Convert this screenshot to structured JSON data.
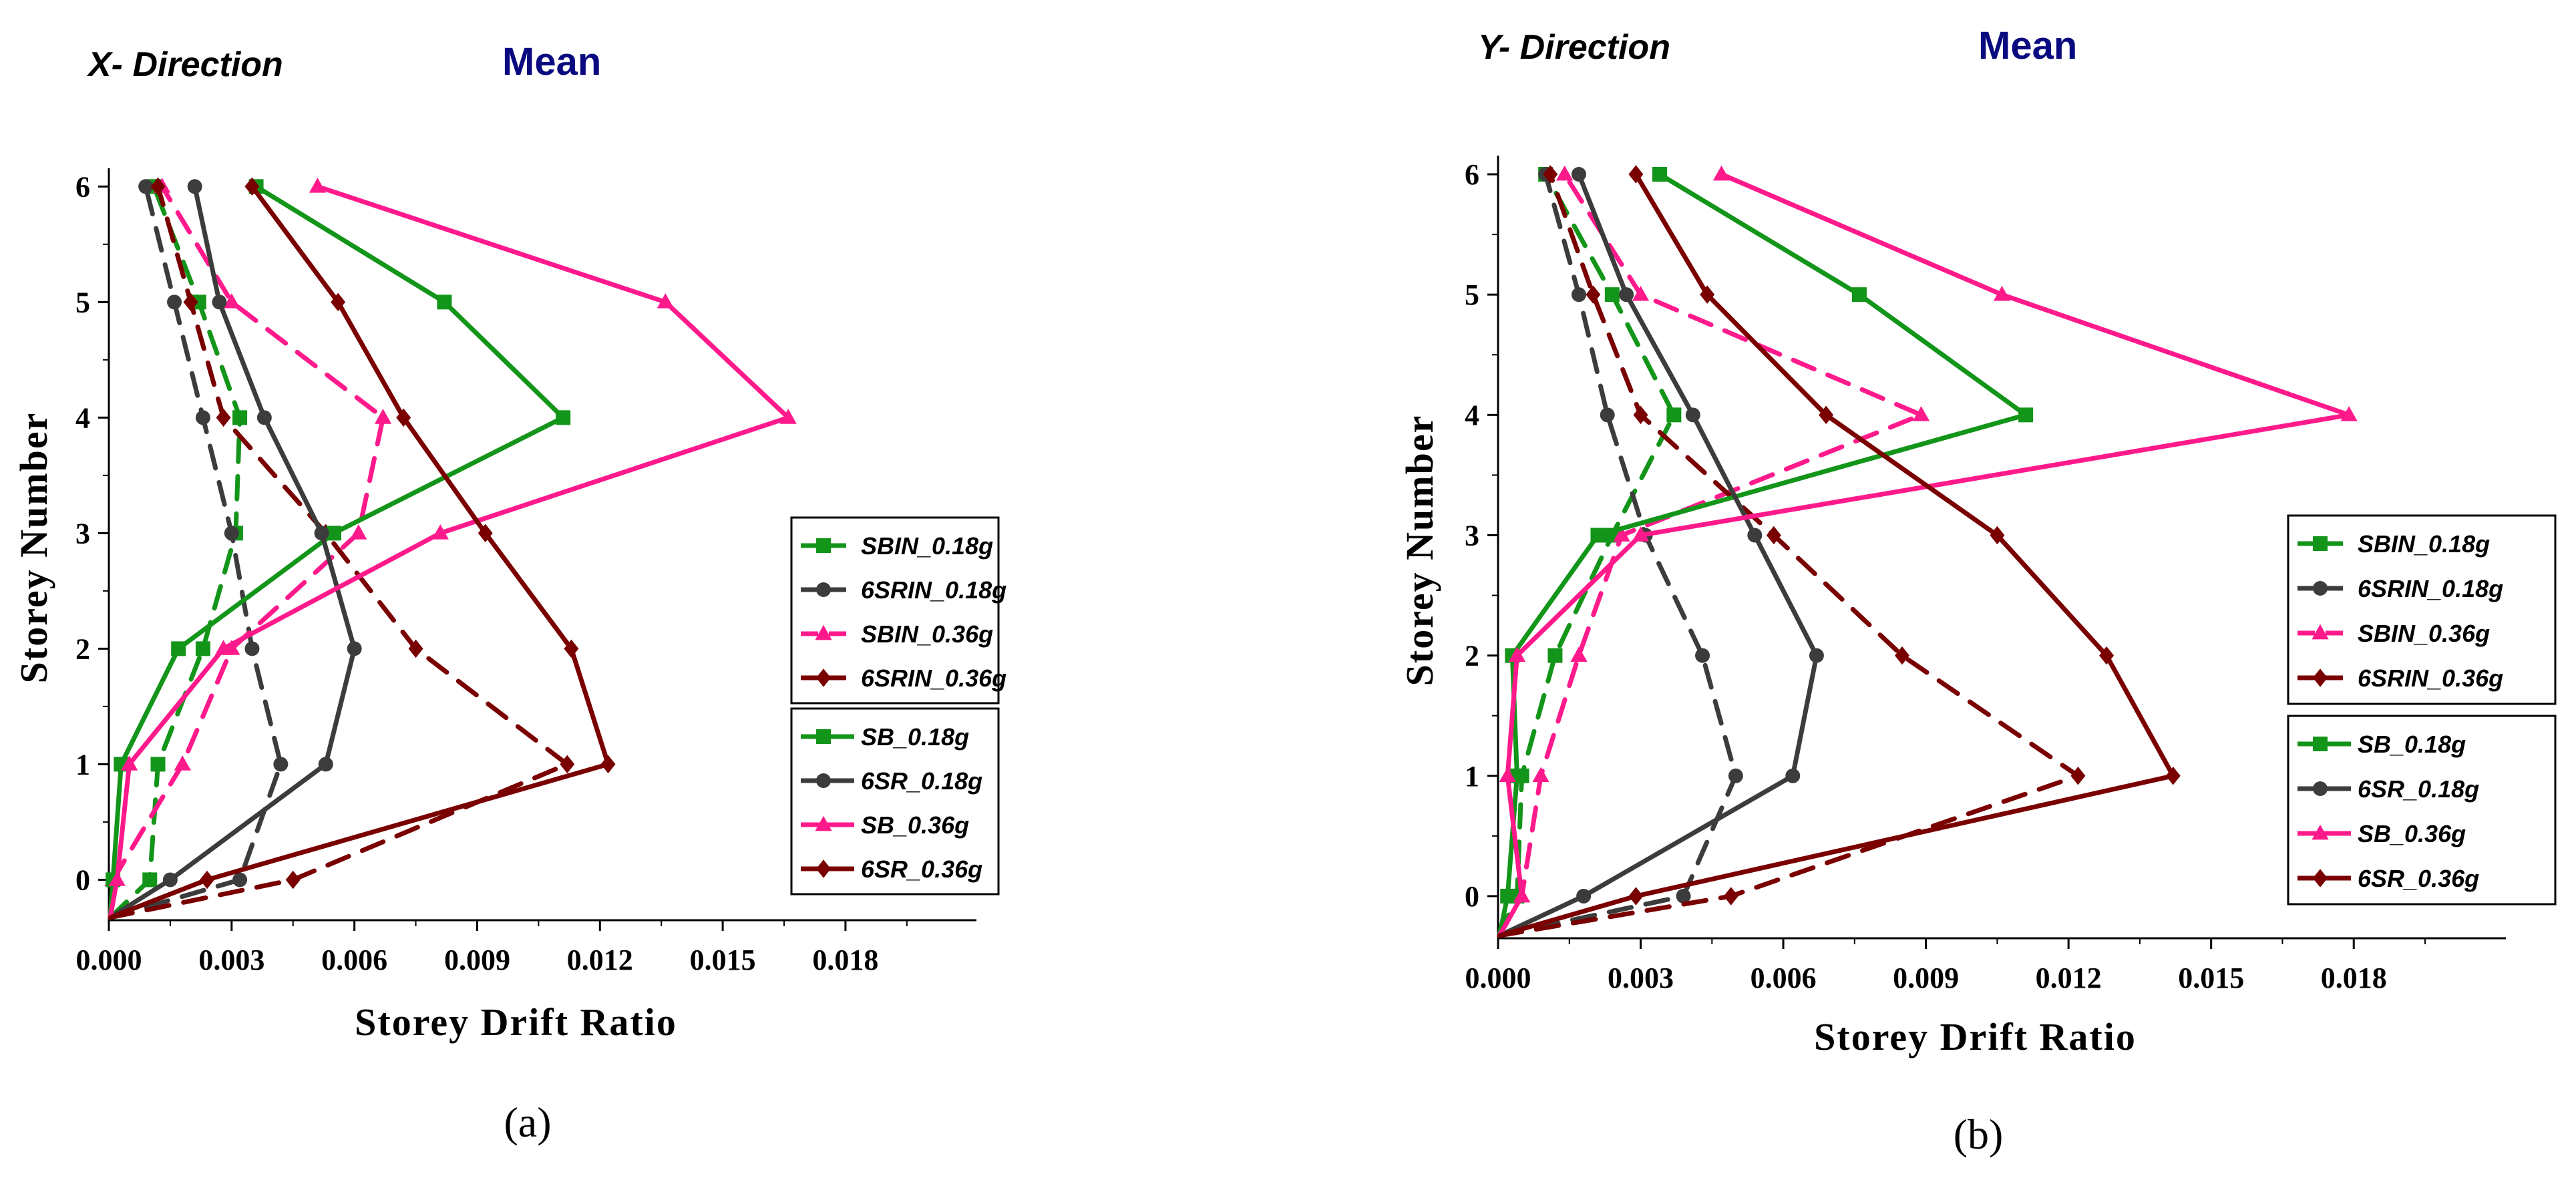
{
  "figure": {
    "labels": [
      "(a)",
      "(b)"
    ]
  },
  "chart_data": [
    {
      "type": "line",
      "panel_label": "(a)",
      "title": "X- Direction",
      "subtitle": "Mean",
      "xlabel": "Storey Drift Ratio",
      "ylabel": "Storey Number",
      "xlim": [
        0,
        0.0212
      ],
      "ylim": [
        -0.35,
        6.1
      ],
      "xticks": [
        "0.000",
        "0.003",
        "0.006",
        "0.009",
        "0.012",
        "0.015",
        "0.018"
      ],
      "yticks": [
        "0",
        "1",
        "2",
        "3",
        "4",
        "5",
        "6"
      ],
      "y": [
        0,
        1,
        2,
        3,
        4,
        5,
        6
      ],
      "series": [
        {
          "name": "SBIN_0.18g",
          "color": "#13951a",
          "dash": true,
          "marker": "square",
          "values": [
            0.001,
            0.0012,
            0.0023,
            0.0031,
            0.0032,
            0.0022,
            0.0011
          ]
        },
        {
          "name": "6SRIN_0.18g",
          "color": "#3c3c3c",
          "dash": true,
          "marker": "circle",
          "values": [
            0.0032,
            0.0042,
            0.0035,
            0.003,
            0.0023,
            0.0016,
            0.0009
          ]
        },
        {
          "name": "SBIN_0.36g",
          "color": "#ff1a8c",
          "dash": true,
          "marker": "triangle",
          "values": [
            0.0001,
            0.0018,
            0.003,
            0.0061,
            0.0067,
            0.003,
            0.0013
          ]
        },
        {
          "name": "6SRIN_0.36g",
          "color": "#7a0000",
          "dash": true,
          "marker": "diamond",
          "values": [
            0.0045,
            0.0112,
            0.0075,
            0.0053,
            0.0028,
            0.002,
            0.0012
          ]
        },
        {
          "name": "SB_0.18g",
          "color": "#13951a",
          "dash": false,
          "marker": "square",
          "values": [
            0.0001,
            0.0003,
            0.0017,
            0.0055,
            0.0111,
            0.0082,
            0.0036
          ]
        },
        {
          "name": "6SR_0.18g",
          "color": "#3c3c3c",
          "dash": false,
          "marker": "circle",
          "values": [
            0.0015,
            0.0053,
            0.006,
            0.0052,
            0.0038,
            0.0027,
            0.0021
          ]
        },
        {
          "name": "SB_0.36g",
          "color": "#ff1a8c",
          "dash": false,
          "marker": "triangle",
          "values": [
            0.0002,
            0.0005,
            0.0028,
            0.0081,
            0.0166,
            0.0136,
            0.0051
          ]
        },
        {
          "name": "6SR_0.36g",
          "color": "#7a0000",
          "dash": false,
          "marker": "diamond",
          "values": [
            0.0024,
            0.0122,
            0.0113,
            0.0092,
            0.0072,
            0.0056,
            0.0035
          ]
        }
      ]
    },
    {
      "type": "line",
      "panel_label": "(b)",
      "title": "Y- Direction",
      "subtitle": "Mean",
      "xlabel": "Storey Drift Ratio",
      "ylabel": "Storey Number",
      "xlim": [
        0,
        0.0212
      ],
      "ylim": [
        -0.35,
        6.1
      ],
      "xticks": [
        "0.000",
        "0.003",
        "0.006",
        "0.009",
        "0.012",
        "0.015",
        "0.018"
      ],
      "yticks": [
        "0",
        "1",
        "2",
        "3",
        "4",
        "5",
        "6"
      ],
      "y": [
        0,
        1,
        2,
        3,
        4,
        5,
        6
      ],
      "series": [
        {
          "name": "SBIN_0.18g",
          "color": "#13951a",
          "dash": true,
          "marker": "square",
          "values": [
            0.0004,
            0.0005,
            0.0012,
            0.0024,
            0.0037,
            0.0024,
            0.001
          ]
        },
        {
          "name": "6SRIN_0.18g",
          "color": "#3c3c3c",
          "dash": true,
          "marker": "circle",
          "values": [
            0.0039,
            0.005,
            0.0043,
            0.0031,
            0.0023,
            0.0017,
            0.001
          ]
        },
        {
          "name": "SBIN_0.36g",
          "color": "#ff1a8c",
          "dash": true,
          "marker": "triangle",
          "values": [
            0.0005,
            0.0009,
            0.0017,
            0.0026,
            0.0089,
            0.003,
            0.0014
          ]
        },
        {
          "name": "6SRIN_0.36g",
          "color": "#7a0000",
          "dash": true,
          "marker": "diamond",
          "values": [
            0.0049,
            0.0122,
            0.0085,
            0.0058,
            0.003,
            0.002,
            0.0011
          ]
        },
        {
          "name": "SB_0.18g",
          "color": "#13951a",
          "dash": false,
          "marker": "square",
          "values": [
            0.0002,
            0.0004,
            0.0003,
            0.0021,
            0.0111,
            0.0076,
            0.0034
          ]
        },
        {
          "name": "6SR_0.18g",
          "color": "#3c3c3c",
          "dash": false,
          "marker": "circle",
          "values": [
            0.0018,
            0.0062,
            0.0067,
            0.0054,
            0.0041,
            0.0027,
            0.0017
          ]
        },
        {
          "name": "SB_0.36g",
          "color": "#ff1a8c",
          "dash": false,
          "marker": "triangle",
          "values": [
            0.0005,
            0.0002,
            0.0004,
            0.003,
            0.0179,
            0.0106,
            0.0047
          ]
        },
        {
          "name": "6SR_0.36g",
          "color": "#7a0000",
          "dash": false,
          "marker": "diamond",
          "values": [
            0.0029,
            0.0142,
            0.0128,
            0.0105,
            0.0069,
            0.0044,
            0.0029
          ]
        }
      ]
    }
  ]
}
